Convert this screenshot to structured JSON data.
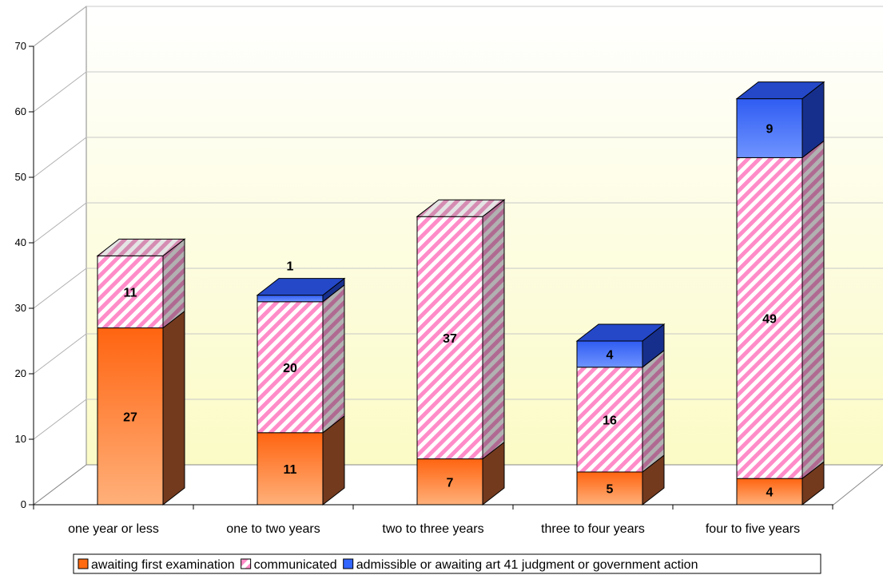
{
  "chart_data": {
    "type": "bar",
    "stacked": true,
    "three_d": true,
    "categories": [
      "one year or less",
      "one to two years",
      "two to three years",
      "three to four years",
      "four to five years"
    ],
    "series": [
      {
        "name": "awaiting first examination",
        "values": [
          27,
          11,
          7,
          5,
          4
        ],
        "color": "#ff6a10"
      },
      {
        "name": "communicated",
        "values": [
          11,
          20,
          37,
          16,
          49
        ],
        "color": "#ff88c8"
      },
      {
        "name": "admissible or awaiting art 41 judgment or government action",
        "values": [
          0,
          1,
          0,
          4,
          9
        ],
        "color": "#3366ff"
      }
    ],
    "data_labels": [
      [
        "27",
        "11",
        "7",
        "5",
        "4"
      ],
      [
        "11",
        "20",
        "37",
        "16",
        "49"
      ],
      [
        "",
        "1",
        "",
        "4",
        "9"
      ]
    ],
    "y_ticks": [
      "0",
      "10",
      "20",
      "30",
      "40",
      "50",
      "60",
      "70"
    ],
    "ylim": [
      0,
      70
    ],
    "grid": true,
    "legend_position": "bottom",
    "title": "",
    "xlabel": "",
    "ylabel": ""
  }
}
